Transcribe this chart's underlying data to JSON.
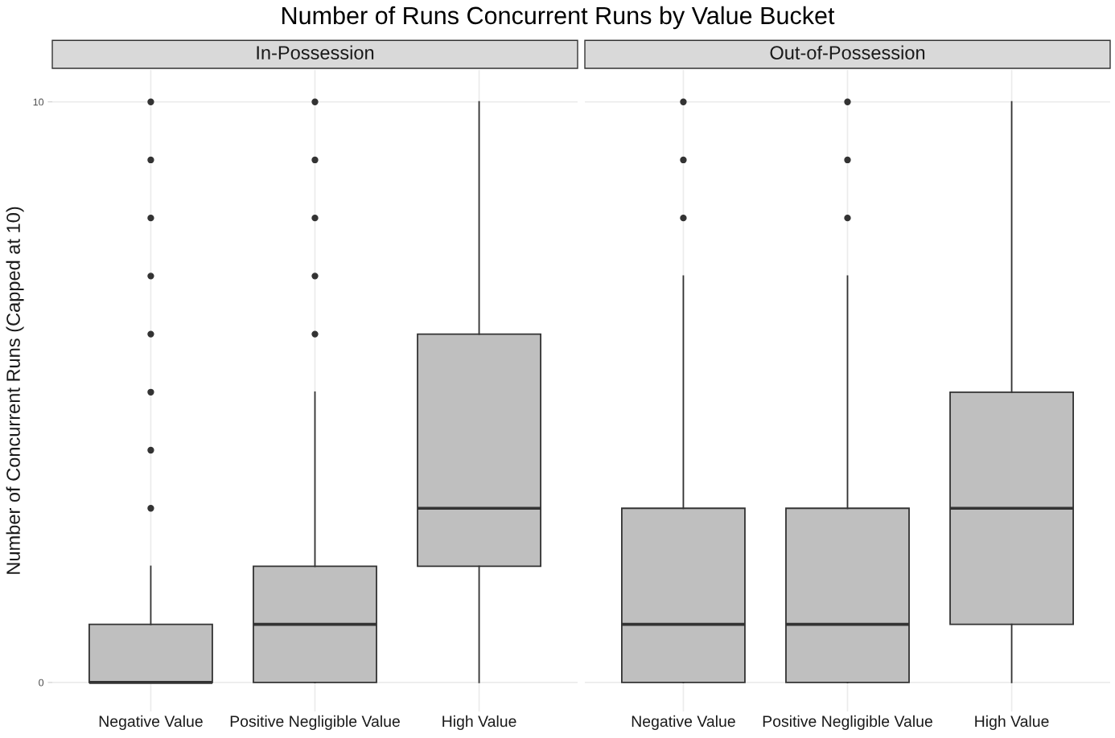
{
  "chart_data": [
    {
      "type": "box",
      "title": "Number of Runs Concurrent Runs by Value Bucket",
      "subtitle": "In-Possession",
      "ylabel": "Number of Concurrent Runs (Capped at 10)",
      "categories": [
        "Negative Value",
        "Positive Negligible Value",
        "High Value"
      ],
      "color": "#bfbfbf",
      "ylim": [
        -0.5,
        10.55
      ],
      "yticks": [
        0,
        10
      ],
      "grid": true,
      "boxes": [
        {
          "low": 0,
          "q1": 0,
          "median": 0,
          "q3": 1,
          "high": 2,
          "outliers": [
            3,
            4,
            5,
            6,
            7,
            8,
            9,
            10
          ]
        },
        {
          "low": 0,
          "q1": 0,
          "median": 1,
          "q3": 2,
          "high": 5,
          "outliers": [
            6,
            7,
            8,
            9,
            10
          ]
        },
        {
          "low": 0,
          "q1": 2,
          "median": 3,
          "q3": 6,
          "high": 10
        }
      ]
    },
    {
      "type": "box",
      "subtitle": "Out-of-Possession",
      "categories": [
        "Negative Value",
        "Positive Negligible Value",
        "High Value"
      ],
      "color": "#bfbfbf",
      "ylim": [
        -0.5,
        10.55
      ],
      "yticks": [
        0,
        10
      ],
      "grid": true,
      "tick_labels": "x",
      "boxes": [
        {
          "low": 0,
          "q1": 0,
          "median": 1,
          "q3": 3,
          "high": 7,
          "outliers": [
            8,
            9,
            10
          ]
        },
        {
          "low": 0,
          "q1": 0,
          "median": 1,
          "q3": 3,
          "high": 7,
          "outliers": [
            8,
            9,
            10
          ]
        },
        {
          "low": 0,
          "q1": 1,
          "median": 3,
          "q3": 5,
          "high": 10
        }
      ]
    }
  ]
}
